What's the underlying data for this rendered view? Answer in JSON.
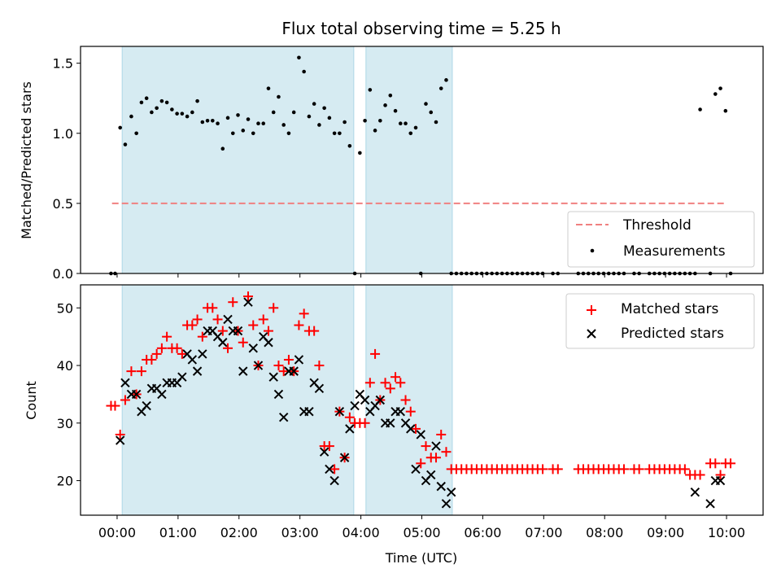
{
  "chart_data": [
    {
      "type": "scatter",
      "title": "Flux total observing time = 5.25 h",
      "xlabel": "",
      "ylabel": "Matched/Predicted stars",
      "xlim_hours": [
        -0.6,
        10.6
      ],
      "ylim": [
        0,
        1.62
      ],
      "yticks": [
        0.0,
        0.5,
        1.0,
        1.5
      ],
      "ytick_labels": [
        "0.0",
        "0.5",
        "1.0",
        "1.5"
      ],
      "shaded_intervals": [
        [
          "00:05",
          "03:53"
        ],
        [
          "04:05",
          "05:30"
        ]
      ],
      "threshold": {
        "name": "Threshold",
        "y": 0.5,
        "x_start": "-00:05",
        "x_end": "10:00",
        "color": "#f08080"
      },
      "legend": {
        "placement": "lower-right",
        "entries": [
          "Threshold",
          "Measurements"
        ]
      },
      "series": [
        {
          "name": "Measurements",
          "color": "#000000",
          "x": [
            "-00:06",
            "-00:02",
            "00:03",
            "00:08",
            "00:14",
            "00:19",
            "00:24",
            "00:29",
            "00:34",
            "00:39",
            "00:44",
            "00:49",
            "00:54",
            "00:59",
            "01:04",
            "01:09",
            "01:14",
            "01:19",
            "01:24",
            "01:29",
            "01:34",
            "01:39",
            "01:44",
            "01:49",
            "01:54",
            "01:59",
            "02:04",
            "02:09",
            "02:14",
            "02:19",
            "02:24",
            "02:29",
            "02:34",
            "02:39",
            "02:44",
            "02:49",
            "02:54",
            "02:59",
            "03:04",
            "03:09",
            "03:14",
            "03:19",
            "03:24",
            "03:29",
            "03:34",
            "03:39",
            "03:44",
            "03:49",
            "03:54",
            "03:59",
            "04:04",
            "04:09",
            "04:14",
            "04:19",
            "04:24",
            "04:29",
            "04:34",
            "04:39",
            "04:44",
            "04:49",
            "04:54",
            "04:59",
            "05:04",
            "05:09",
            "05:14",
            "05:19",
            "05:24",
            "05:29",
            "05:34",
            "05:39",
            "05:44",
            "05:49",
            "05:54",
            "05:59",
            "06:04",
            "06:09",
            "06:14",
            "06:19",
            "06:24",
            "06:29",
            "06:34",
            "06:39",
            "06:44",
            "06:49",
            "06:54",
            "06:59",
            "07:09",
            "07:14",
            "07:34",
            "07:39",
            "07:44",
            "07:49",
            "07:54",
            "07:59",
            "08:04",
            "08:09",
            "08:14",
            "08:19",
            "08:29",
            "08:34",
            "08:44",
            "08:49",
            "08:54",
            "08:59",
            "09:04",
            "09:09",
            "09:14",
            "09:19",
            "09:24",
            "09:29",
            "09:34",
            "09:44",
            "09:49",
            "09:54",
            "09:59",
            "10:04"
          ],
          "y": [
            0,
            0,
            1.04,
            0.92,
            1.12,
            1.0,
            1.22,
            1.25,
            1.15,
            1.18,
            1.23,
            1.22,
            1.17,
            1.14,
            1.14,
            1.12,
            1.15,
            1.23,
            1.08,
            1.09,
            1.09,
            1.07,
            0.89,
            1.11,
            1.0,
            1.13,
            1.02,
            1.1,
            1.0,
            1.07,
            1.07,
            1.32,
            1.15,
            1.26,
            1.06,
            1.0,
            1.15,
            1.54,
            1.44,
            1.12,
            1.21,
            1.06,
            1.18,
            1.11,
            1.0,
            1.0,
            1.08,
            0.91,
            0,
            0.86,
            1.09,
            1.31,
            1.02,
            1.09,
            1.2,
            1.27,
            1.16,
            1.07,
            1.07,
            1.0,
            1.04,
            0,
            1.21,
            1.15,
            1.08,
            1.32,
            1.38,
            0,
            0,
            0,
            0,
            0,
            0,
            0,
            0,
            0,
            0,
            0,
            0,
            0,
            0,
            0,
            0,
            0,
            0,
            0,
            0,
            0,
            0,
            0,
            0,
            0,
            0,
            0,
            0,
            0,
            0,
            0,
            0,
            0,
            0,
            0,
            0,
            0,
            0,
            0,
            0,
            0,
            0,
            0,
            1.17,
            0,
            1.28,
            1.32,
            1.16,
            0
          ]
        }
      ]
    },
    {
      "type": "scatter",
      "title": "",
      "xlabel": "Time (UTC)",
      "ylabel": "Count",
      "xlim_hours": [
        -0.6,
        10.6
      ],
      "ylim": [
        14,
        54
      ],
      "yticks": [
        20,
        30,
        40,
        50
      ],
      "ytick_labels": [
        "20",
        "30",
        "40",
        "50"
      ],
      "xtick_labels": [
        "00:00",
        "01:00",
        "02:00",
        "03:00",
        "04:00",
        "05:00",
        "06:00",
        "07:00",
        "08:00",
        "09:00",
        "10:00"
      ],
      "shaded_intervals": [
        [
          "00:05",
          "03:53"
        ],
        [
          "04:05",
          "05:30"
        ]
      ],
      "legend": {
        "placement": "upper-right",
        "entries": [
          "Matched stars",
          "Predicted stars"
        ]
      },
      "series": [
        {
          "name": "Matched stars",
          "marker": "+",
          "color": "#ff0000",
          "x": [
            "-00:06",
            "-00:02",
            "00:03",
            "00:08",
            "00:14",
            "00:19",
            "00:24",
            "00:29",
            "00:34",
            "00:39",
            "00:44",
            "00:49",
            "00:54",
            "00:59",
            "01:04",
            "01:09",
            "01:14",
            "01:19",
            "01:24",
            "01:29",
            "01:34",
            "01:39",
            "01:44",
            "01:49",
            "01:54",
            "01:59",
            "02:04",
            "02:09",
            "02:14",
            "02:19",
            "02:24",
            "02:29",
            "02:34",
            "02:39",
            "02:44",
            "02:49",
            "02:54",
            "02:59",
            "03:04",
            "03:09",
            "03:14",
            "03:19",
            "03:24",
            "03:29",
            "03:34",
            "03:39",
            "03:44",
            "03:49",
            "03:54",
            "03:59",
            "04:04",
            "04:09",
            "04:14",
            "04:19",
            "04:24",
            "04:29",
            "04:34",
            "04:39",
            "04:44",
            "04:49",
            "04:54",
            "04:59",
            "05:04",
            "05:09",
            "05:14",
            "05:19",
            "05:24",
            "05:29",
            "05:34",
            "05:39",
            "05:44",
            "05:49",
            "05:54",
            "05:59",
            "06:04",
            "06:09",
            "06:14",
            "06:19",
            "06:24",
            "06:29",
            "06:34",
            "06:39",
            "06:44",
            "06:49",
            "06:54",
            "06:59",
            "07:09",
            "07:14",
            "07:34",
            "07:39",
            "07:44",
            "07:49",
            "07:54",
            "07:59",
            "08:04",
            "08:09",
            "08:14",
            "08:19",
            "08:29",
            "08:34",
            "08:44",
            "08:49",
            "08:54",
            "08:59",
            "09:04",
            "09:09",
            "09:14",
            "09:19",
            "09:24",
            "09:29",
            "09:34",
            "09:44",
            "09:49",
            "09:54",
            "09:59",
            "10:04"
          ],
          "y": [
            33,
            33,
            28,
            34,
            39,
            35,
            39,
            41,
            41,
            42,
            43,
            45,
            43,
            43,
            42,
            47,
            47,
            48,
            45,
            50,
            50,
            48,
            46,
            43,
            51,
            46,
            44,
            52,
            47,
            40,
            48,
            46,
            50,
            40,
            39,
            41,
            39,
            47,
            49,
            46,
            46,
            40,
            26,
            26,
            22,
            32,
            24,
            31,
            30,
            30,
            30,
            37,
            42,
            34,
            37,
            36,
            38,
            37,
            34,
            32,
            29,
            23,
            26,
            24,
            24,
            28,
            25,
            22,
            22,
            22,
            22,
            22,
            22,
            22,
            22,
            22,
            22,
            22,
            22,
            22,
            22,
            22,
            22,
            22,
            22,
            22,
            22,
            22,
            22,
            22,
            22,
            22,
            22,
            22,
            22,
            22,
            22,
            22,
            22,
            22,
            22,
            22,
            22,
            22,
            22,
            22,
            22,
            22,
            21,
            21,
            21,
            23,
            23,
            21,
            23,
            23
          ]
        },
        {
          "name": "Predicted stars",
          "marker": "x",
          "color": "#000000",
          "x": [
            "00:03",
            "00:08",
            "00:14",
            "00:19",
            "00:24",
            "00:29",
            "00:34",
            "00:39",
            "00:44",
            "00:49",
            "00:54",
            "00:59",
            "01:04",
            "01:09",
            "01:14",
            "01:19",
            "01:24",
            "01:29",
            "01:34",
            "01:39",
            "01:44",
            "01:49",
            "01:54",
            "01:59",
            "02:04",
            "02:09",
            "02:14",
            "02:19",
            "02:24",
            "02:29",
            "02:34",
            "02:39",
            "02:44",
            "02:49",
            "02:54",
            "02:59",
            "03:04",
            "03:09",
            "03:14",
            "03:19",
            "03:24",
            "03:29",
            "03:34",
            "03:39",
            "03:44",
            "03:49",
            "03:54",
            "03:59",
            "04:04",
            "04:09",
            "04:14",
            "04:19",
            "04:24",
            "04:29",
            "04:34",
            "04:39",
            "04:44",
            "04:49",
            "04:54",
            "04:59",
            "05:04",
            "05:09",
            "05:14",
            "05:19",
            "05:24",
            "05:29",
            "09:29",
            "09:44",
            "09:49",
            "09:54"
          ],
          "y": [
            27,
            37,
            35,
            35,
            32,
            33,
            36,
            36,
            35,
            37,
            37,
            37,
            38,
            42,
            41,
            39,
            42,
            46,
            46,
            45,
            44,
            48,
            46,
            46,
            39,
            51,
            43,
            40,
            45,
            44,
            38,
            35,
            31,
            39,
            39,
            41,
            32,
            32,
            37,
            36,
            25,
            22,
            20,
            32,
            24,
            29,
            33,
            35,
            34,
            32,
            33,
            34,
            30,
            30,
            32,
            32,
            30,
            29,
            22,
            28,
            20,
            21,
            26,
            19,
            16,
            18,
            18,
            16,
            20,
            20
          ]
        }
      ]
    }
  ]
}
